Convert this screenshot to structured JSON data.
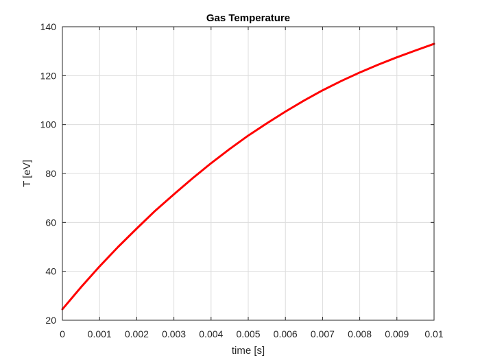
{
  "chart_data": {
    "type": "line",
    "title": "Gas Temperature",
    "xlabel": "time [s]",
    "ylabel": "T [eV]",
    "xlim": [
      0,
      0.01
    ],
    "ylim": [
      20,
      140
    ],
    "xticks": [
      0,
      0.001,
      0.002,
      0.003,
      0.004,
      0.005,
      0.006,
      0.007,
      0.008,
      0.009,
      0.01
    ],
    "xtick_labels": [
      "0",
      "0.001",
      "0.002",
      "0.003",
      "0.004",
      "0.005",
      "0.006",
      "0.007",
      "0.008",
      "0.009",
      "0.01"
    ],
    "yticks": [
      20,
      40,
      60,
      80,
      100,
      120,
      140
    ],
    "ytick_labels": [
      "20",
      "40",
      "60",
      "80",
      "100",
      "120",
      "140"
    ],
    "grid": true,
    "series": [
      {
        "color": "#ff0000",
        "x": [
          0,
          0.0005,
          0.001,
          0.0015,
          0.002,
          0.0025,
          0.003,
          0.0035,
          0.004,
          0.0045,
          0.005,
          0.0055,
          0.006,
          0.0065,
          0.007,
          0.0075,
          0.008,
          0.0085,
          0.009,
          0.0095,
          0.01
        ],
        "values": [
          24.5,
          33.5,
          42.0,
          50.0,
          57.5,
          64.8,
          71.5,
          78.0,
          84.2,
          90.0,
          95.5,
          100.5,
          105.3,
          109.8,
          114.0,
          117.8,
          121.3,
          124.5,
          127.5,
          130.3,
          133.0
        ]
      }
    ]
  }
}
